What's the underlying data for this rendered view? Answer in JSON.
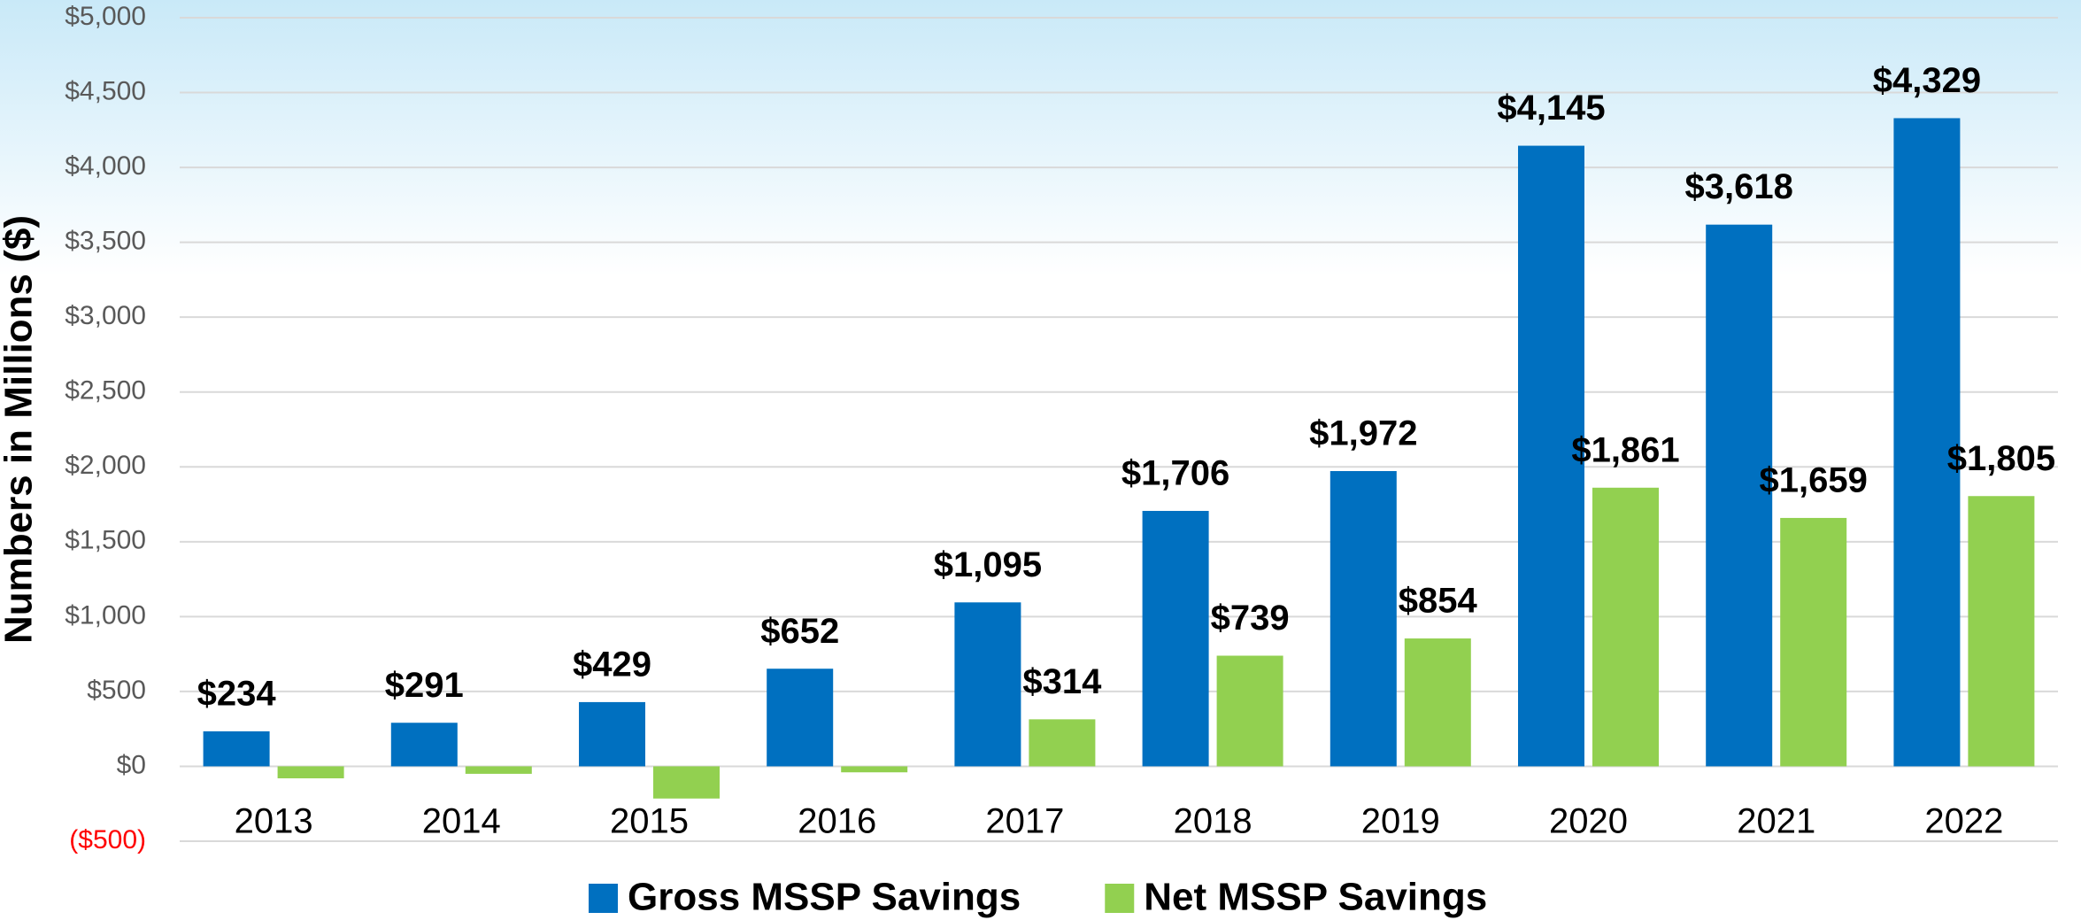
{
  "chart_data": {
    "type": "bar",
    "y_label": "Numbers in Millions ($)",
    "categories": [
      "2013",
      "2014",
      "2015",
      "2016",
      "2017",
      "2018",
      "2019",
      "2020",
      "2021",
      "2022"
    ],
    "series": [
      {
        "name": "Gross MSSP Savings",
        "color": "#0070c0",
        "values": [
          234,
          291,
          429,
          652,
          1095,
          1706,
          1972,
          4145,
          3618,
          4329
        ],
        "value_labels": [
          "$234",
          "$291",
          "$429",
          "$652",
          "$1,095",
          "$1,706",
          "$1,972",
          "$4,145",
          "$3,618",
          "$4,329"
        ]
      },
      {
        "name": "Net MSSP Savings",
        "color": "#92d050",
        "values": [
          -80,
          -50,
          -215,
          -40,
          314,
          739,
          854,
          1861,
          1659,
          1805
        ],
        "value_labels": [
          null,
          null,
          null,
          null,
          "$314",
          "$739",
          "$854",
          "$1,861",
          "$1,659",
          "$1,805"
        ]
      }
    ],
    "ylim": [
      -500,
      5000
    ],
    "yticks": [
      {
        "value": -500,
        "label": "($500)"
      },
      {
        "value": 0,
        "label": "$0"
      },
      {
        "value": 500,
        "label": "$500"
      },
      {
        "value": 1000,
        "label": "$1,000"
      },
      {
        "value": 1500,
        "label": "$1,500"
      },
      {
        "value": 2000,
        "label": "$2,000"
      },
      {
        "value": 2500,
        "label": "$2,500"
      },
      {
        "value": 3000,
        "label": "$3,000"
      },
      {
        "value": 3500,
        "label": "$3,500"
      },
      {
        "value": 4000,
        "label": "$4,000"
      },
      {
        "value": 4500,
        "label": "$4,500"
      },
      {
        "value": 5000,
        "label": "$5,000"
      }
    ],
    "negative_tick_color": "#ff0000",
    "grid": true,
    "legend": "bottom"
  }
}
